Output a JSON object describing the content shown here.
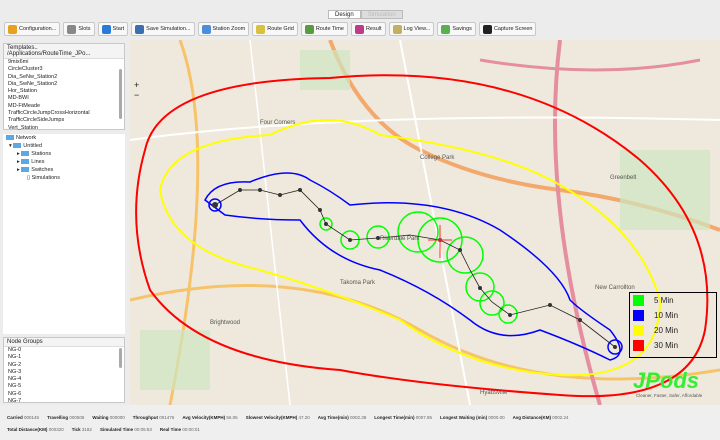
{
  "tabs": [
    {
      "label": "Design",
      "active": true
    },
    {
      "label": "Simulation",
      "active": false
    }
  ],
  "toolbar": [
    {
      "label": "Configuration...",
      "icon": "gear-icon",
      "color": "#e8a020"
    },
    {
      "label": "Slots",
      "icon": "slots-icon",
      "color": "#888888"
    },
    {
      "label": "Start",
      "icon": "play-icon",
      "color": "#2a7bd8"
    },
    {
      "label": "Save Simulation...",
      "icon": "save-icon",
      "color": "#3b6fb0"
    },
    {
      "label": "Station Zoom",
      "icon": "magnifier-icon",
      "color": "#4a8fd8"
    },
    {
      "label": "Route Grid",
      "icon": "grid-icon",
      "color": "#d8c040"
    },
    {
      "label": "Route Time",
      "icon": "map-icon",
      "color": "#5a9a40"
    },
    {
      "label": "Result",
      "icon": "chart-icon",
      "color": "#c03a8a"
    },
    {
      "label": "Log View...",
      "icon": "log-icon",
      "color": "#c0b060"
    },
    {
      "label": "Savings",
      "icon": "money-icon",
      "color": "#5ab050"
    },
    {
      "label": "Capture Screen",
      "icon": "camera-icon",
      "color": "#222222"
    }
  ],
  "templates": {
    "title": "Templates.. /Applications/RouteTime_JPo...",
    "items": [
      "9mix6mi",
      "CircleCluster3",
      "Dia_SeNw_Station2",
      "Dia_SwNe_Station2",
      "Hor_Station",
      "MD-BWI",
      "MD-FtMeade",
      "TrafficCircleJumpCrossHorizontal",
      "TrafficCircleSideJumps",
      "Vert_Station"
    ]
  },
  "tree": {
    "root": "Network",
    "child": "Untitled",
    "folders": [
      "Stations",
      "Lines",
      "Switches"
    ],
    "leaf": "Simulations"
  },
  "node_groups": {
    "title": "Node Groups",
    "items": [
      "NG-0",
      "NG-1",
      "NG-2",
      "NG-3",
      "NG-4",
      "NG-5",
      "NG-6",
      "NG-7"
    ]
  },
  "status": {
    "row1": [
      [
        "Carried",
        "000145"
      ],
      [
        "Travelling",
        "000505"
      ],
      [
        "Waiting",
        "000000"
      ],
      [
        "Throughput",
        "001476"
      ],
      [
        "Avg Velocity(KMPH)",
        "56.05"
      ],
      [
        "Slowest Velocity(KMPH)",
        "47.20"
      ],
      [
        "Avg Time(min)",
        "0002.38"
      ],
      [
        "Longest Time(min)",
        "0007.85"
      ],
      [
        "Longest Waiting (min)",
        "0000.00"
      ],
      [
        "Avg Distance(KM)",
        "0002.24"
      ]
    ],
    "row2": [
      [
        "Total Distance(KM)",
        "000320"
      ],
      [
        "Tick",
        "3182"
      ],
      [
        "Simulated Time",
        "00:05:53"
      ],
      [
        "Real Time",
        "00:00:01"
      ]
    ]
  },
  "legend": [
    {
      "label": "5 Min",
      "color": "#00ff00"
    },
    {
      "label": "10 Min",
      "color": "#0000ff"
    },
    {
      "label": "20 Min",
      "color": "#ffff00"
    },
    {
      "label": "30 Min",
      "color": "#ff0000"
    }
  ],
  "logo": {
    "text": "JPods",
    "tagline": "Cleaner, Faster, Safer, Affordable"
  },
  "map_labels": [
    "Takoma Park",
    "Brightwood",
    "New Carrollton",
    "Hyattsville",
    "College Park",
    "Greenbelt",
    "Four Corners",
    "Riverdale Park"
  ]
}
